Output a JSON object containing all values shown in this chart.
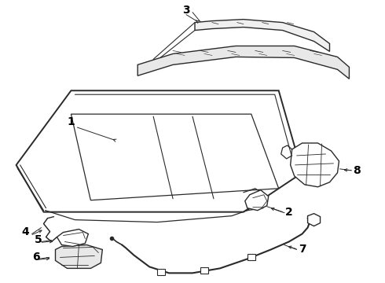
{
  "bg_color": "#ffffff",
  "line_color": "#2a2a2a",
  "lw": 1.0,
  "label_fontsize": 10,
  "figw": 4.9,
  "figh": 3.6,
  "dpi": 100
}
